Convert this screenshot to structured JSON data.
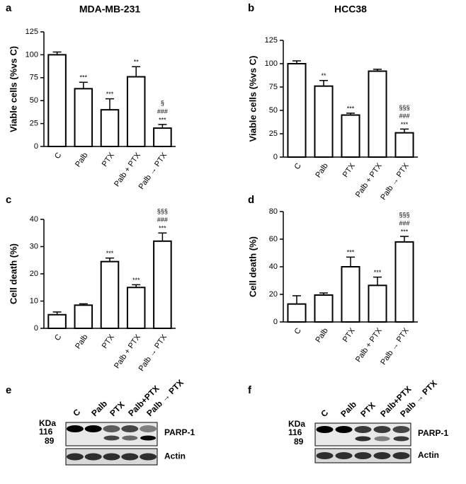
{
  "chart_data": [
    {
      "type": "bar",
      "panel": "a",
      "title": "MDA-MB-231",
      "ylabel": "Viable cells (%vs C)",
      "categories": [
        "C",
        "Palb",
        "PTX",
        "Palb + PTX",
        "Palb → PTX"
      ],
      "values": [
        100,
        63,
        40,
        76,
        20
      ],
      "errors": [
        3,
        7,
        12,
        11,
        4
      ],
      "annotations": [
        [],
        [
          "***"
        ],
        [
          "***"
        ],
        [
          "**"
        ],
        [
          "§",
          "###",
          "***"
        ]
      ],
      "ylim": [
        0,
        125
      ],
      "yticks": [
        0,
        25,
        50,
        75,
        100,
        125
      ]
    },
    {
      "type": "bar",
      "panel": "b",
      "title": "HCC38",
      "ylabel": "Viable cells (%vs C)",
      "categories": [
        "C",
        "Palb",
        "PTX",
        "Palb + PTX",
        "Palb → PTX"
      ],
      "values": [
        100,
        76,
        45,
        92,
        26
      ],
      "errors": [
        3,
        6,
        2,
        2,
        4
      ],
      "annotations": [
        [],
        [
          "**"
        ],
        [
          "***"
        ],
        [],
        [
          "§§§",
          "###",
          "***"
        ]
      ],
      "ylim": [
        0,
        125
      ],
      "yticks": [
        0,
        25,
        50,
        75,
        100,
        125
      ]
    },
    {
      "type": "bar",
      "panel": "c",
      "ylabel": "Cell death (%)",
      "categories": [
        "C",
        "Palb",
        "PTX",
        "Palb + PTX",
        "Palb → PTX"
      ],
      "values": [
        5,
        8.5,
        24.5,
        15,
        32
      ],
      "errors": [
        1,
        0.5,
        1.3,
        1,
        3
      ],
      "annotations": [
        [],
        [],
        [
          "***"
        ],
        [
          "***"
        ],
        [
          "§§§",
          "###",
          "***"
        ]
      ],
      "ylim": [
        0,
        40
      ],
      "yticks": [
        0,
        10,
        20,
        30,
        40
      ]
    },
    {
      "type": "bar",
      "panel": "d",
      "ylabel": "Cell death (%)",
      "categories": [
        "C",
        "Palb",
        "PTX",
        "Palb + PTX",
        "Palb → PTX"
      ],
      "values": [
        13,
        19.5,
        40,
        26.5,
        58
      ],
      "errors": [
        6,
        1.5,
        7,
        6,
        4
      ],
      "annotations": [
        [],
        [],
        [
          "***"
        ],
        [
          "***"
        ],
        [
          "§§§",
          "###",
          "***"
        ]
      ],
      "ylim": [
        0,
        80
      ],
      "yticks": [
        0,
        20,
        40,
        60,
        80
      ]
    }
  ],
  "blots": [
    {
      "panel": "e",
      "lanes": [
        "C",
        "Palb",
        "PTX",
        "Palb+PTX",
        "Palb → PTX"
      ],
      "unit": "KDa",
      "markers": [
        116,
        89
      ],
      "proteins": [
        "PARP-1",
        "Actin"
      ]
    },
    {
      "panel": "f",
      "lanes": [
        "C",
        "Palb",
        "PTX",
        "Palb+PTX",
        "Palb → PTX"
      ],
      "unit": "KDa",
      "markers": [
        116,
        89
      ],
      "proteins": [
        "PARP-1",
        "Actin"
      ]
    }
  ]
}
